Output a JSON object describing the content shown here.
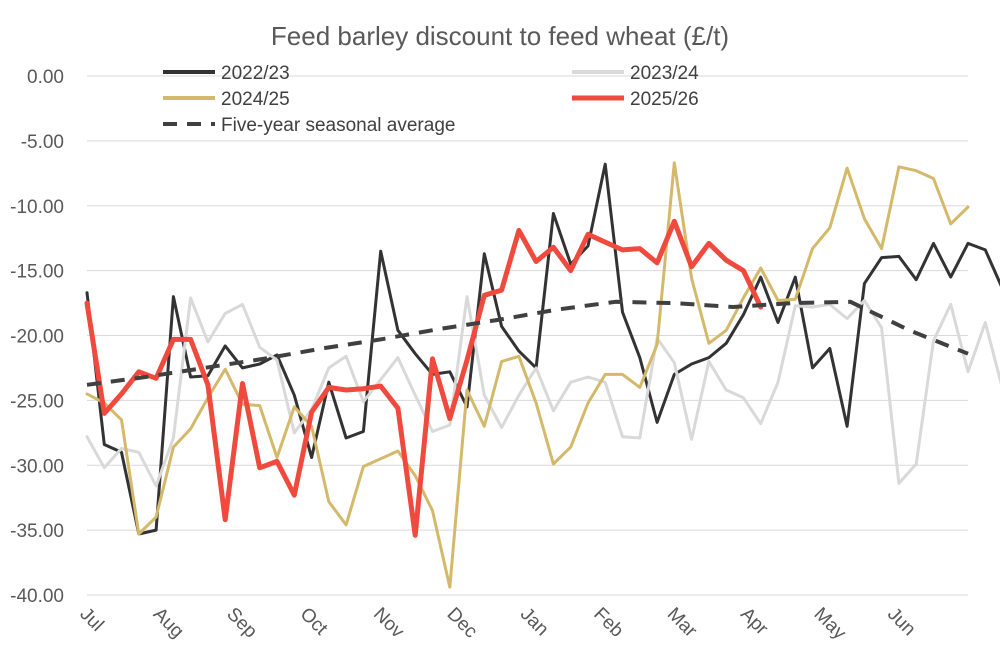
{
  "chart_data": {
    "type": "line",
    "title": "Feed barley discount to feed wheat (£/t)",
    "xlabel": "",
    "ylabel": "",
    "ylim": [
      -40,
      0
    ],
    "y_ticks": [
      "0.00",
      "-5.00",
      "-10.00",
      "-15.00",
      "-20.00",
      "-25.00",
      "-30.00",
      "-35.00",
      "-40.00"
    ],
    "x_ticks": [
      "Jul",
      "Aug",
      "Sep",
      "Oct",
      "Nov",
      "Dec",
      "Jan",
      "Feb",
      "Mar",
      "Apr",
      "May",
      "Jun"
    ],
    "weeks_per_season": 52,
    "grid": true,
    "legend_placement": "top",
    "series": [
      {
        "name": "2022/23",
        "color": "#333333",
        "dash": false,
        "width": 3,
        "values": [
          -16.7,
          -28.4,
          -29.0,
          -35.3,
          -35.0,
          -17.0,
          -23.2,
          -23.1,
          -20.8,
          -22.5,
          -22.2,
          -21.5,
          -24.6,
          -29.4,
          -23.6,
          -27.9,
          -27.4,
          -13.5,
          -19.6,
          -21.4,
          -23.0,
          -22.8,
          -25.5,
          -13.7,
          -19.3,
          -21.2,
          -22.5,
          -10.6,
          -14.5,
          -13.1,
          -6.8,
          -18.2,
          -21.7,
          -26.7,
          -23.0,
          -22.2,
          -21.7,
          -20.6,
          -18.4,
          -15.5,
          -19.0,
          -15.5,
          -22.5,
          -21.0,
          -27.0,
          -16.0,
          -14.0,
          -13.9,
          -15.7,
          -12.9,
          -15.5,
          -12.9,
          -13.4,
          -16.4,
          -18.7
        ]
      },
      {
        "name": "2023/24",
        "color": "#d9d9d9",
        "dash": false,
        "width": 3,
        "values": [
          -27.8,
          -30.2,
          -28.7,
          -29.0,
          -31.6,
          -27.9,
          -17.1,
          -20.5,
          -18.3,
          -17.6,
          -20.9,
          -21.9,
          -27.5,
          -25.7,
          -22.5,
          -21.6,
          -25.1,
          -23.4,
          -21.7,
          -24.6,
          -27.4,
          -26.9,
          -17.0,
          -24.6,
          -27.1,
          -24.6,
          -22.5,
          -25.8,
          -23.6,
          -23.2,
          -23.6,
          -27.8,
          -27.9,
          -20.2,
          -22.1,
          -28.0,
          -22.0,
          -24.2,
          -24.8,
          -26.8,
          -23.6,
          -17.7,
          -17.8,
          -17.6,
          -18.7,
          -17.3,
          -19.4,
          -31.4,
          -29.9,
          -20.4,
          -17.6,
          -22.8,
          -19.0,
          -24.1
        ]
      },
      {
        "name": "2024/25",
        "color": "#d4b96a",
        "dash": false,
        "width": 3,
        "values": [
          -24.5,
          -25.2,
          -26.5,
          -35.3,
          -34.0,
          -28.6,
          -27.2,
          -24.8,
          -22.6,
          -25.3,
          -25.4,
          -29.4,
          -25.5,
          -27.0,
          -32.8,
          -34.6,
          -30.1,
          -29.5,
          -28.9,
          -30.8,
          -33.5,
          -39.4,
          -24.2,
          -27.0,
          -22.0,
          -21.6,
          -25.2,
          -29.9,
          -28.6,
          -25.2,
          -23.0,
          -23.0,
          -24.0,
          -20.7,
          -6.7,
          -15.6,
          -20.6,
          -19.6,
          -17.1,
          -14.8,
          -17.3,
          -17.2,
          -13.3,
          -11.7,
          -7.1,
          -11.0,
          -13.3,
          -7.0,
          -7.3,
          -7.9,
          -11.4,
          -10.1
        ]
      },
      {
        "name": "2025/26",
        "color": "#ef4a3d",
        "dash": false,
        "width": 5,
        "values": [
          -17.5,
          -26.0,
          -24.5,
          -22.8,
          -23.3,
          -20.3,
          -20.3,
          -23.8,
          -34.2,
          -23.7,
          -30.2,
          -29.7,
          -32.3,
          -25.9,
          -24.0,
          -24.2,
          -24.1,
          -23.9,
          -25.6,
          -35.4,
          -21.8,
          -26.4,
          -21.9,
          -16.9,
          -16.5,
          -11.9,
          -14.3,
          -13.2,
          -15.0,
          -12.2,
          -12.8,
          -13.4,
          -13.3,
          -14.4,
          -11.2,
          -14.7,
          -12.9,
          -14.2,
          -15.0,
          -17.8
        ]
      },
      {
        "name": "Five-year seasonal average",
        "color": "#404040",
        "dash": true,
        "width": 4,
        "values": [
          -23.8,
          -23.2,
          -22.5,
          -21.8,
          -21.0,
          -20.3,
          -19.5,
          -18.8,
          -18.0,
          -17.4,
          -17.5,
          -17.8,
          -17.5,
          -17.4,
          -19.6,
          -21.4
        ]
      }
    ]
  }
}
